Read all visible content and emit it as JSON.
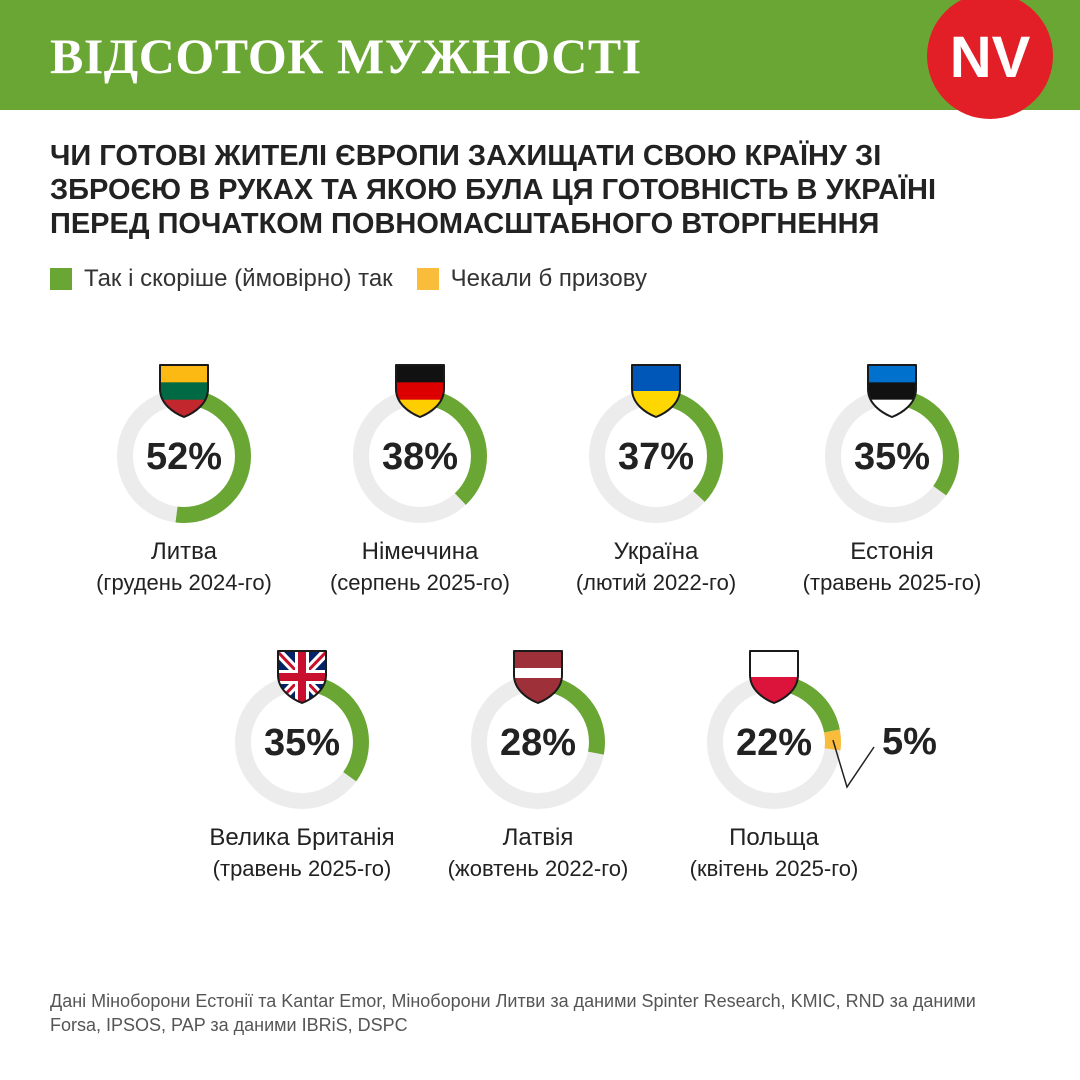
{
  "header": {
    "title": "ВІДСОТОК МУЖНОСТІ",
    "logo_text": "NV",
    "background_color": "#6aa634",
    "logo_color": "#e21f26"
  },
  "subtitle": "Чи готові жителі Європи захищати свою країну зі зброєю в руках та якою була ця готовність в Україні перед початком повномасштабного вторгнення",
  "legend": [
    {
      "label": "Так і скоріше (ймовірно) так",
      "color": "#6aa634"
    },
    {
      "label": "Чекали б призову",
      "color": "#f9bd3b"
    }
  ],
  "colors": {
    "track": "#ececec",
    "yes": "#6aa634",
    "conscription": "#f9bd3b"
  },
  "chart_data": {
    "type": "donut",
    "unit": "%",
    "series": [
      {
        "name": "Так і скоріше (ймовірно) так",
        "color": "#6aa634"
      },
      {
        "name": "Чекали б призову",
        "color": "#f9bd3b"
      }
    ],
    "items": [
      {
        "country": "Литва",
        "date": "(грудень 2024-го)",
        "value": 52,
        "label": "52%",
        "flag": "lithuania-flag-icon"
      },
      {
        "country": "Німеччина",
        "date": "(серпень 2025-го)",
        "value": 38,
        "label": "38%",
        "flag": "germany-flag-icon"
      },
      {
        "country": "Україна",
        "date": "(лютий 2022-го)",
        "value": 37,
        "label": "37%",
        "flag": "ukraine-flag-icon"
      },
      {
        "country": "Естонія",
        "date": "(травень 2025-го)",
        "value": 35,
        "label": "35%",
        "flag": "estonia-flag-icon"
      },
      {
        "country": "Велика Британія",
        "date": "(травень 2025-го)",
        "value": 35,
        "label": "35%",
        "flag": "uk-flag-icon"
      },
      {
        "country": "Латвія",
        "date": "(жовтень 2022-го)",
        "value": 28,
        "label": "28%",
        "flag": "latvia-flag-icon"
      },
      {
        "country": "Польща",
        "date": "(квітень 2025-го)",
        "value": 22,
        "label": "22%",
        "flag": "poland-flag-icon",
        "conscription_value": 5,
        "conscription_label": "5%"
      }
    ]
  },
  "source": "Дані Міноборони Естонії та Kantar Emor, Міноборони Литви за даними Spinter Research, KMIC, RND за даними Forsa, IPSOS, PAP за даними IBRiS, DSPC"
}
